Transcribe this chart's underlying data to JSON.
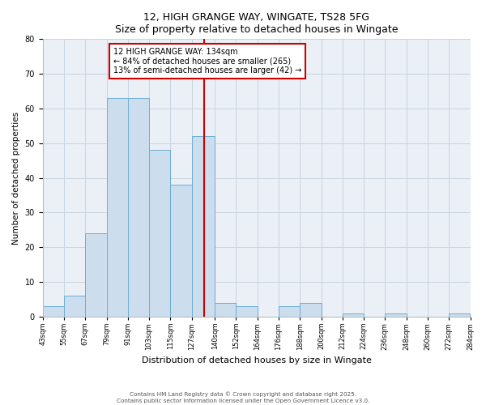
{
  "title": "12, HIGH GRANGE WAY, WINGATE, TS28 5FG",
  "subtitle": "Size of property relative to detached houses in Wingate",
  "xlabel": "Distribution of detached houses by size in Wingate",
  "ylabel": "Number of detached properties",
  "bin_edges": [
    43,
    55,
    67,
    79,
    91,
    103,
    115,
    127,
    140,
    152,
    164,
    176,
    188,
    200,
    212,
    224,
    236,
    248,
    260,
    272,
    284
  ],
  "bin_counts": [
    3,
    6,
    24,
    63,
    63,
    48,
    38,
    52,
    4,
    3,
    0,
    3,
    4,
    0,
    1,
    0,
    1,
    0,
    0,
    1
  ],
  "bar_facecolor": "#ccdded",
  "bar_edgecolor": "#6aaed6",
  "vline_x": 134,
  "vline_color": "#cc0000",
  "annotation_line1": "12 HIGH GRANGE WAY: 134sqm",
  "annotation_line2": "← 84% of detached houses are smaller (265)",
  "annotation_line3": "13% of semi-detached houses are larger (42) →",
  "annotation_box_edgecolor": "#cc0000",
  "ylim": [
    0,
    80
  ],
  "yticks": [
    0,
    10,
    20,
    30,
    40,
    50,
    60,
    70,
    80
  ],
  "grid_color": "#c8d4e0",
  "background_color": "#eaf0f6",
  "footer_line1": "Contains HM Land Registry data © Crown copyright and database right 2025.",
  "footer_line2": "Contains public sector information licensed under the Open Government Licence v3.0.",
  "tick_labels": [
    "43sqm",
    "55sqm",
    "67sqm",
    "79sqm",
    "91sqm",
    "103sqm",
    "115sqm",
    "127sqm",
    "140sqm",
    "152sqm",
    "164sqm",
    "176sqm",
    "188sqm",
    "200sqm",
    "212sqm",
    "224sqm",
    "236sqm",
    "248sqm",
    "260sqm",
    "272sqm",
    "284sqm"
  ]
}
